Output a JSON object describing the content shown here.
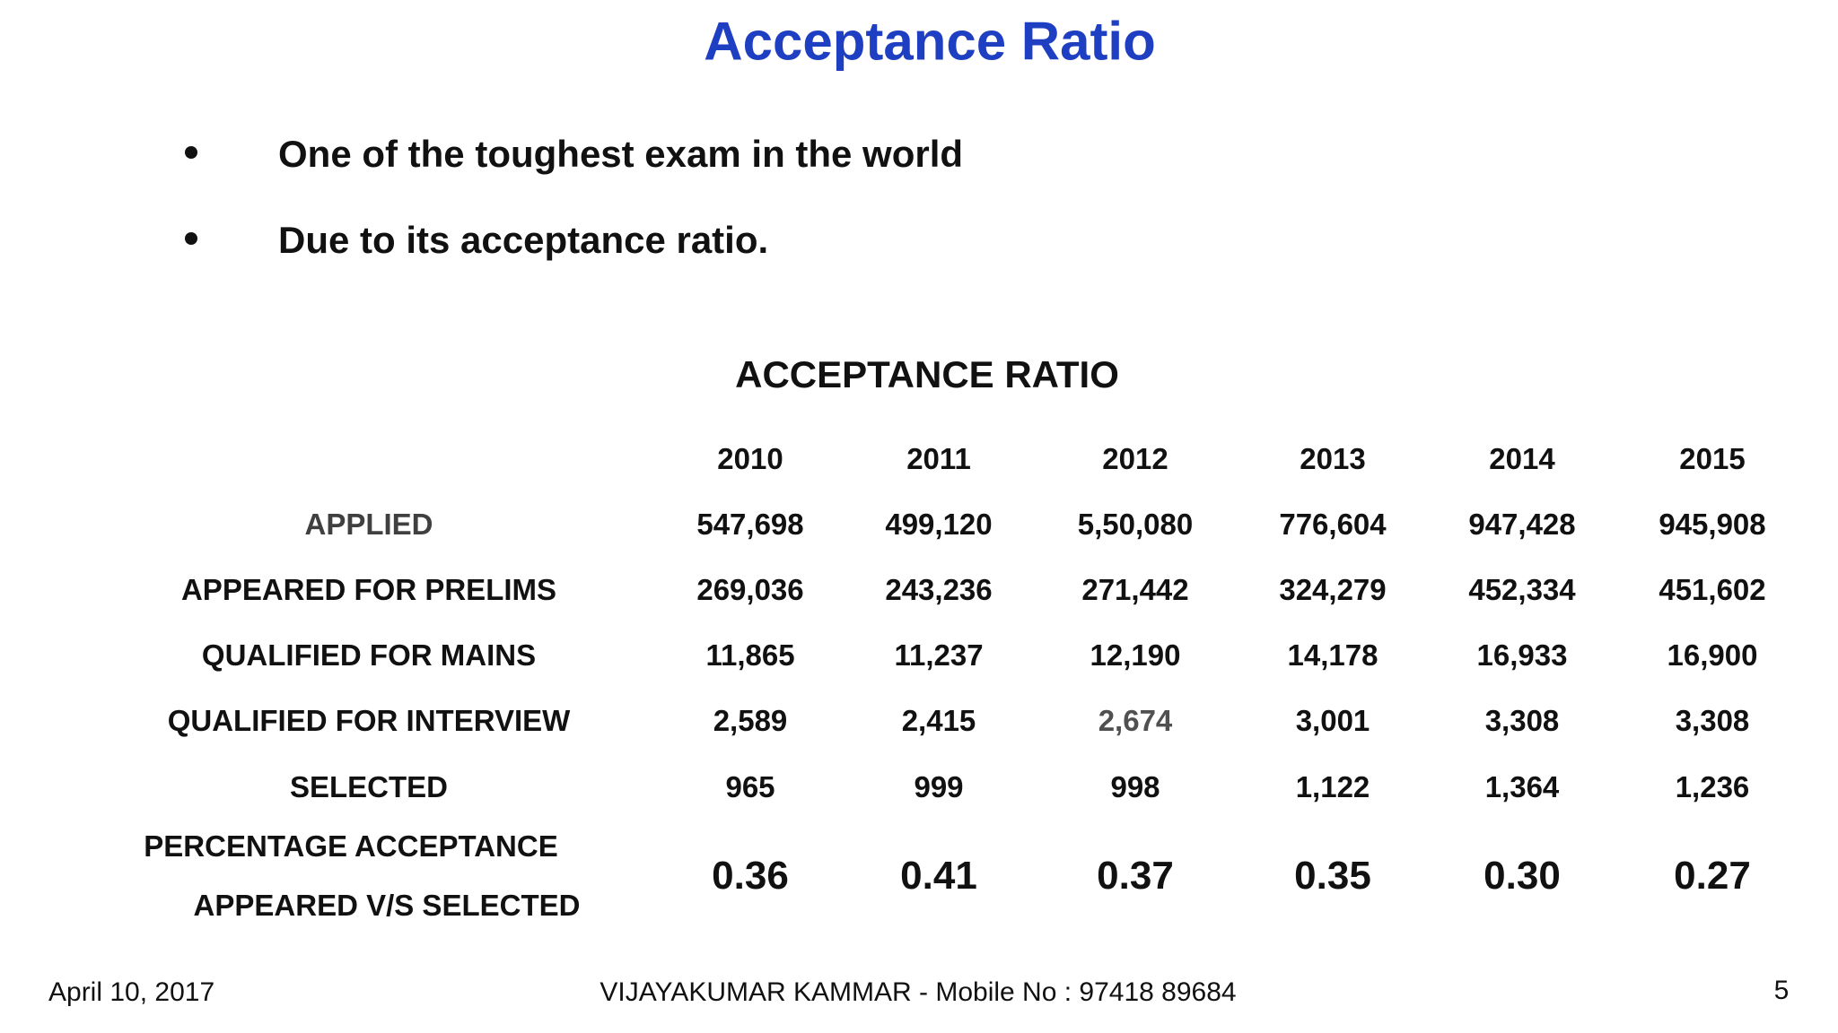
{
  "title": "Acceptance Ratio",
  "bullets": [
    "One of the toughest exam in the world",
    "Due to its acceptance ratio."
  ],
  "table": {
    "title": "ACCEPTANCE RATIO",
    "columns": [
      "2010",
      "2011",
      "2012",
      "2013",
      "2014",
      "2015"
    ],
    "rows": [
      {
        "label": [
          "APPLIED"
        ],
        "cells": [
          "547,698",
          "499,120",
          "5,50,080",
          "776,604",
          "947,428",
          "945,908"
        ]
      },
      {
        "label": [
          "APPEARED FOR PRELIMS"
        ],
        "cells": [
          "269,036",
          "243,236",
          "271,442",
          "324,279",
          "452,334",
          "451,602"
        ]
      },
      {
        "label": [
          "QUALIFIED FOR MAINS"
        ],
        "cells": [
          "11,865",
          "11,237",
          "12,190",
          "14,178",
          "16,933",
          "16,900"
        ]
      },
      {
        "label": [
          "QUALIFIED FOR INTERVIEW"
        ],
        "cells": [
          "2,589",
          "2,415",
          "2,674",
          "3,001",
          "3,308",
          "3,308"
        ]
      },
      {
        "label": [
          "SELECTED"
        ],
        "cells": [
          "965",
          "999",
          "998",
          "1,122",
          "1,364",
          "1,236"
        ]
      },
      {
        "label": [
          "PERCENTAGE ACCEPTANCE",
          "APPEARED V/S SELECTED"
        ],
        "cells": [
          "0.36",
          "0.41",
          "0.37",
          "0.35",
          "0.30",
          "0.27"
        ]
      }
    ]
  },
  "footer": {
    "date": "April 10, 2017",
    "author": "VIJAYAKUMAR KAMMAR - Mobile No : 97418 89684",
    "page": "5"
  }
}
